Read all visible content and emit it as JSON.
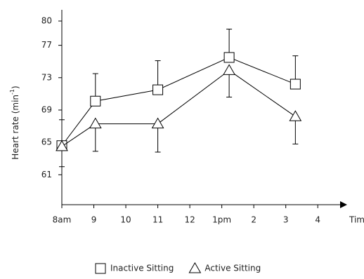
{
  "chart_data": {
    "type": "line",
    "ylabel": {
      "text": "Heart rate (min",
      "sup": "-1",
      "end": ")"
    },
    "xlabel": "Time",
    "xlim": [
      8,
      16.83
    ],
    "ylim": [
      57.3,
      81.3
    ],
    "xticks": [
      {
        "value": 8,
        "label": "8am"
      },
      9,
      10,
      11,
      12,
      {
        "value": 13,
        "label": "1pm"
      },
      {
        "value": 14,
        "label": "2"
      },
      {
        "value": 15,
        "label": "3"
      },
      {
        "value": 16,
        "label": "4"
      }
    ],
    "yticks": [
      80,
      77,
      73,
      69,
      65,
      61
    ],
    "series": [
      {
        "name": "Inactive Sitting",
        "marker": "square",
        "color": "#000000",
        "error_direction": "up",
        "x": [
          8,
          9.05,
          11,
          13.23,
          15.3
        ],
        "values": [
          64.6,
          70.1,
          71.5,
          75.5,
          72.2
        ],
        "errors": [
          3.2,
          3.4,
          3.6,
          3.5,
          3.5
        ]
      },
      {
        "name": "Active Sitting",
        "marker": "triangle",
        "color": "#000000",
        "error_direction": "down",
        "x": [
          8,
          9.05,
          11,
          13.23,
          15.3
        ],
        "values": [
          64.5,
          67.3,
          67.3,
          73.9,
          68.2
        ],
        "errors": [
          2.5,
          3.4,
          3.5,
          3.3,
          3.4
        ]
      }
    ]
  }
}
